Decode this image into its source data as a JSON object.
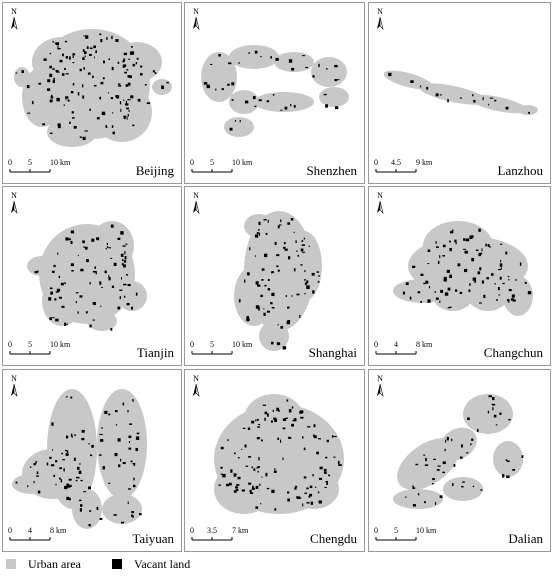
{
  "panels": [
    {
      "city": "Beijing",
      "north": "N",
      "scale": [
        "0",
        "5",
        "10 km"
      ]
    },
    {
      "city": "Shenzhen",
      "north": "N",
      "scale": [
        "0",
        "5",
        "10 km"
      ]
    },
    {
      "city": "Lanzhou",
      "north": "N",
      "scale": [
        "0",
        "4.5",
        "9 km"
      ]
    },
    {
      "city": "Tianjin",
      "north": "N",
      "scale": [
        "0",
        "5",
        "10 km"
      ]
    },
    {
      "city": "Shanghai",
      "north": "N",
      "scale": [
        "0",
        "5",
        "10 km"
      ]
    },
    {
      "city": "Changchun",
      "north": "N",
      "scale": [
        "0",
        "4",
        "8 km"
      ]
    },
    {
      "city": "Taiyuan",
      "north": "N",
      "scale": [
        "0",
        "4",
        "8 km"
      ]
    },
    {
      "city": "Chengdu",
      "north": "N",
      "scale": [
        "0",
        "3.5",
        "7 km"
      ]
    },
    {
      "city": "Dalian",
      "north": "N",
      "scale": [
        "0",
        "5",
        "10 km"
      ]
    }
  ],
  "legend": [
    {
      "label": "Urban area"
    },
    {
      "label": "Vacant land"
    }
  ]
}
